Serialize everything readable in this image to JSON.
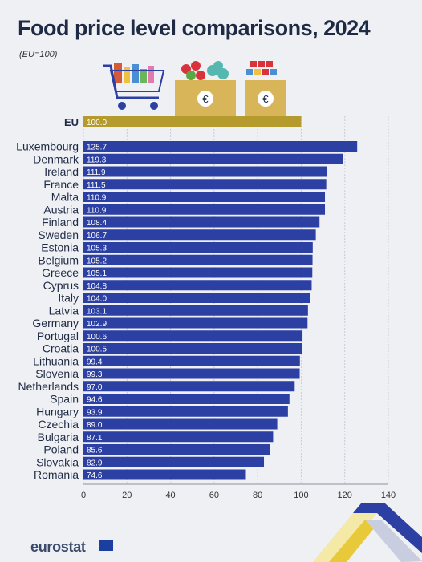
{
  "chart_data": {
    "type": "bar",
    "orientation": "horizontal",
    "title": "Food price level comparisons, 2024",
    "subtitle": "(EU=100)",
    "reference": {
      "category": "EU",
      "value": 100.0,
      "label": "100.0"
    },
    "categories": [
      "Luxembourg",
      "Denmark",
      "Ireland",
      "France",
      "Malta",
      "Austria",
      "Finland",
      "Sweden",
      "Estonia",
      "Belgium",
      "Greece",
      "Cyprus",
      "Italy",
      "Latvia",
      "Germany",
      "Portugal",
      "Croatia",
      "Lithuania",
      "Slovenia",
      "Netherlands",
      "Spain",
      "Hungary",
      "Czechia",
      "Bulgaria",
      "Poland",
      "Slovakia",
      "Romania"
    ],
    "values": [
      125.7,
      119.3,
      111.9,
      111.5,
      110.9,
      110.9,
      108.4,
      106.7,
      105.3,
      105.2,
      105.1,
      104.8,
      104.0,
      103.1,
      102.9,
      100.6,
      100.5,
      99.4,
      99.3,
      97.0,
      94.6,
      93.9,
      89.0,
      87.1,
      85.6,
      82.9,
      74.6
    ],
    "value_labels": [
      "125.7",
      "119.3",
      "111.9",
      "111.5",
      "110.9",
      "110.9",
      "108.4",
      "106.7",
      "105.3",
      "105.2",
      "105.1",
      "104.8",
      "104.0",
      "103.1",
      "102.9",
      "100.6",
      "100.5",
      "99.4",
      "99.3",
      "97.0",
      "94.6",
      "93.9",
      "89.0",
      "87.1",
      "85.6",
      "82.9",
      "74.6"
    ],
    "xlim": [
      0,
      140
    ],
    "xticks": [
      0,
      20,
      40,
      60,
      80,
      100,
      120,
      140
    ],
    "xtick_labels": [
      "0",
      "20",
      "40",
      "60",
      "80",
      "100",
      "120",
      "140"
    ],
    "grid": true,
    "bar_color": "#2c3fa3",
    "reference_color": "#b59a2e"
  },
  "footer": {
    "logo_text": "eurostat"
  }
}
